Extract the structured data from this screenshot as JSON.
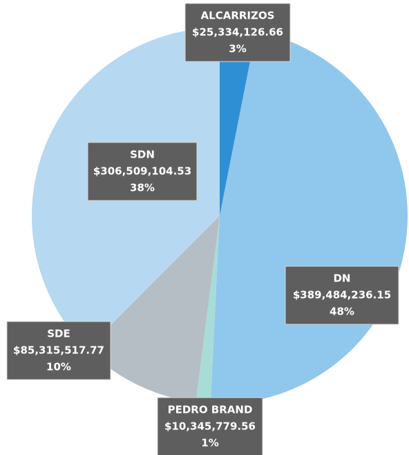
{
  "chart_data": {
    "type": "pie",
    "categories": [
      "ALCARRIZOS",
      "DN",
      "PEDRO BRAND",
      "SDE",
      "SDN"
    ],
    "values": [
      25334126.66,
      389484236.15,
      10345779.56,
      85315517.77,
      306509104.53
    ],
    "value_labels": [
      "$25,334,126.66",
      "$389,484,236.15",
      "$10,345,779.56",
      "$85,315,517.77",
      "$306,509,104.53"
    ],
    "percent_labels": [
      "3%",
      "48%",
      "1%",
      "10%",
      "38%"
    ],
    "colors": [
      "#2f8fd4",
      "#90c7ec",
      "#a8dcd6",
      "#b5bdc5",
      "#b6d8f0"
    ]
  }
}
